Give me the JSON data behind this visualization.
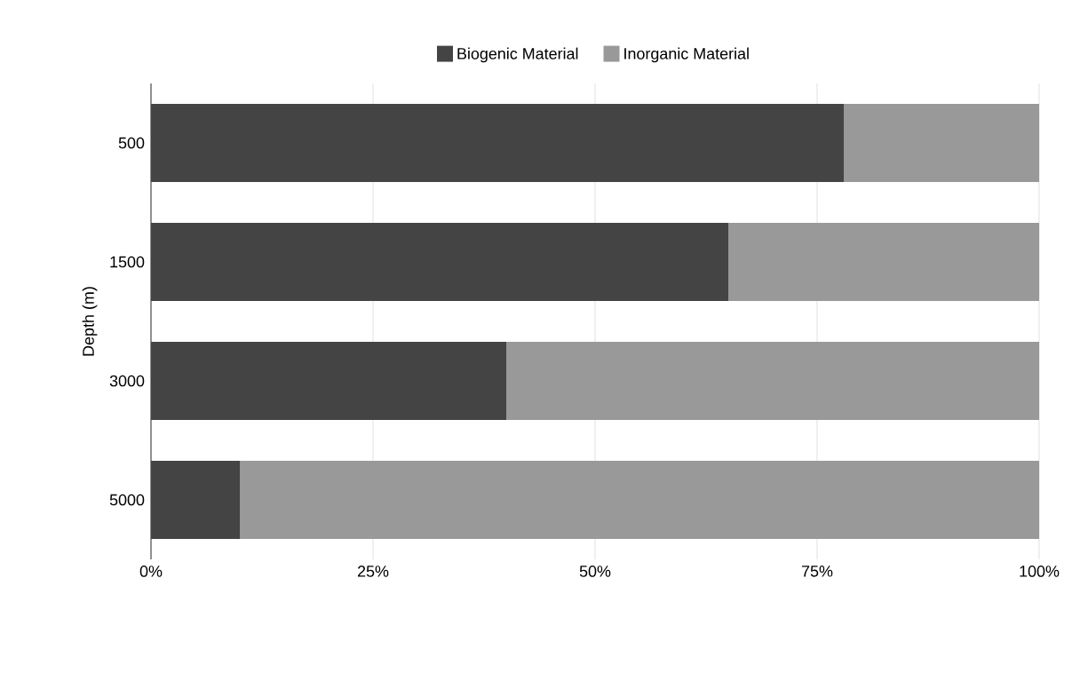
{
  "chart_data": {
    "type": "bar",
    "orientation": "horizontal",
    "stacked": true,
    "ylabel": "Depth (m)",
    "categories": [
      "500",
      "1500",
      "3000",
      "5000"
    ],
    "series": [
      {
        "name": "Biogenic Material",
        "color": "#444444",
        "values": [
          78,
          65,
          40,
          10
        ]
      },
      {
        "name": "Inorganic Material",
        "color": "#999999",
        "values": [
          22,
          35,
          60,
          90
        ]
      }
    ],
    "xlim": [
      0,
      100
    ],
    "xticks": [
      {
        "value": 0,
        "label": "0%"
      },
      {
        "value": 25,
        "label": "25%"
      },
      {
        "value": 50,
        "label": "50%"
      },
      {
        "value": 75,
        "label": "75%"
      },
      {
        "value": 100,
        "label": "100%"
      }
    ],
    "grid": "x",
    "legend": "top"
  }
}
